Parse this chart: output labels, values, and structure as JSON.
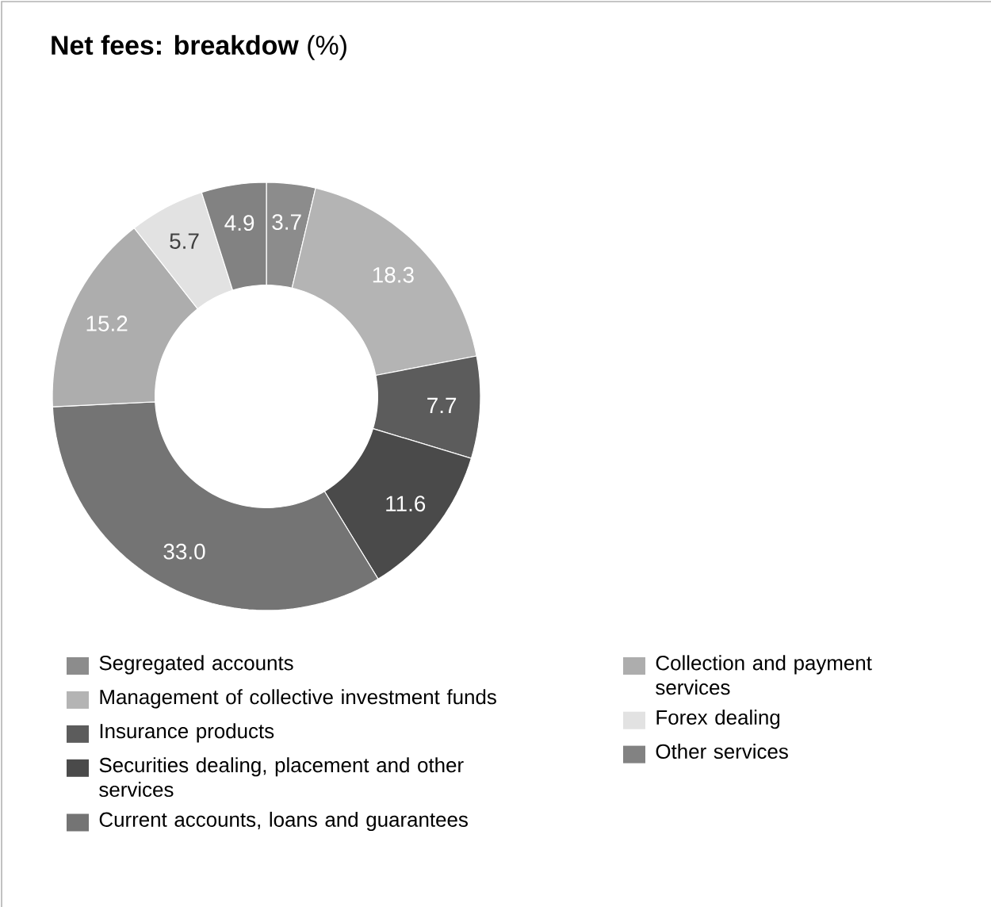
{
  "chart_data": {
    "type": "donut",
    "title": "**Net fees: breakdow** (%)",
    "categories": [
      "Segregated accounts",
      "Management of collective investment funds",
      "Insurance products",
      "Securities dealing, placement and other services",
      "Current accounts, loans and guarantees",
      "Collection and payment services",
      "Forex dealing",
      "Other services"
    ],
    "values": [
      3.7,
      18.3,
      7.7,
      11.6,
      33.0,
      15.2,
      5.7,
      4.9
    ],
    "colors": [
      "#8c8c8c",
      "#b4b4b4",
      "#5c5c5c",
      "#4a4a4a",
      "#747474",
      "#adadad",
      "#e2e2e2",
      "#828282"
    ],
    "value_labels": [
      "3.7",
      "18.3",
      "7.7",
      "11.6",
      "33.0",
      "15.2",
      "5.7",
      "4.9"
    ],
    "legend": "bottom"
  }
}
